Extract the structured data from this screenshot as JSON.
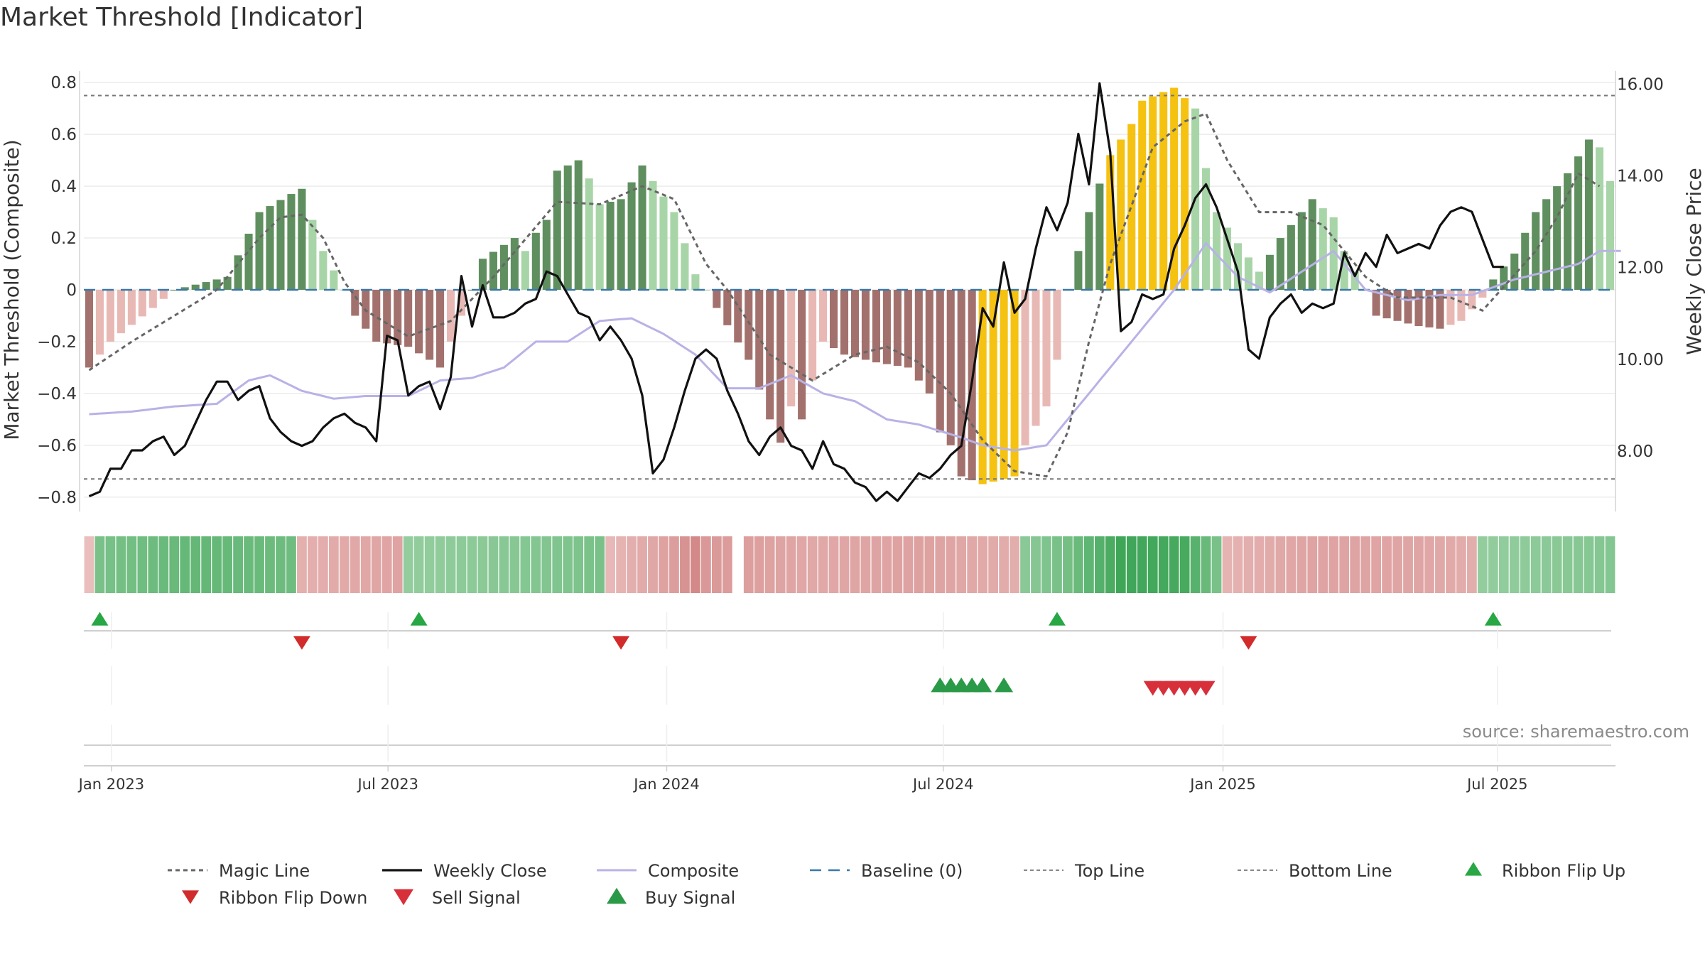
{
  "title": "Market Threshold [Indicator]",
  "source_note": "source: sharemaestro.com",
  "colors": {
    "bull_dark": "#5f8f5f",
    "bull_light": "#a8d5a8",
    "bear_dark": "#a3716d",
    "bear_light": "#e8b9b4",
    "extreme": "#f5c211",
    "close": "#111111",
    "composite": "#b8b2e6",
    "magic": "#666666",
    "baseline": "#3a78a8",
    "buy": "#2b9a48",
    "sell": "#d7303b",
    "flip_up": "#28a745",
    "flip_down": "#d22b2b"
  },
  "chart_data": {
    "type": "composite-indicator",
    "title": "Market Threshold [Indicator]",
    "ylabel_left": "Market Threshold (Composite)",
    "ylabel_right": "Weekly Close Price",
    "ylim_left": [
      -0.85,
      0.85
    ],
    "ylim_right": [
      6.7,
      16.3
    ],
    "yticks_left": [
      {
        "v": 0.8,
        "label": "0.8"
      },
      {
        "v": 0.6,
        "label": "0.6"
      },
      {
        "v": 0.4,
        "label": "0.4"
      },
      {
        "v": 0.2,
        "label": "0.2"
      },
      {
        "v": 0,
        "label": "0"
      },
      {
        "v": -0.2,
        "label": "−0.2"
      },
      {
        "v": -0.4,
        "label": "−0.4"
      },
      {
        "v": -0.6,
        "label": "−0.6"
      },
      {
        "v": -0.8,
        "label": "−0.8"
      }
    ],
    "yticks_right": [
      {
        "v": 16,
        "label": "16.00"
      },
      {
        "v": 14,
        "label": "14.00"
      },
      {
        "v": 12,
        "label": "12.00"
      },
      {
        "v": 10,
        "label": "10.00"
      },
      {
        "v": 8,
        "label": "8.00"
      }
    ],
    "x_start": "2022-12-19",
    "weeks": 144,
    "xticks": [
      {
        "week": 2.1,
        "label": "Jan 2023"
      },
      {
        "week": 28.1,
        "label": "Jul 2023"
      },
      {
        "week": 54.3,
        "label": "Jan 2024"
      },
      {
        "week": 80.3,
        "label": "Jul 2024"
      },
      {
        "week": 106.6,
        "label": "Jan 2025"
      },
      {
        "week": 132.4,
        "label": "Jul 2025"
      }
    ],
    "top_line": 0.75,
    "bottom_line": -0.73,
    "baseline": 0,
    "histogram_anchors": [
      [
        0,
        -0.3
      ],
      [
        2,
        -0.2
      ],
      [
        6,
        -0.07
      ],
      [
        8,
        0
      ],
      [
        10,
        0.02
      ],
      [
        13,
        0.05
      ],
      [
        16,
        0.3
      ],
      [
        19,
        0.37
      ],
      [
        20,
        0.39
      ],
      [
        22,
        0.15
      ],
      [
        24,
        0
      ],
      [
        25,
        -0.1
      ],
      [
        27,
        -0.2
      ],
      [
        30,
        -0.22
      ],
      [
        32,
        -0.27
      ],
      [
        33,
        -0.3
      ],
      [
        35,
        -0.1
      ],
      [
        36,
        0
      ],
      [
        37,
        0.12
      ],
      [
        40,
        0.2
      ],
      [
        41,
        0.15
      ],
      [
        42,
        0.22
      ],
      [
        43,
        0.27
      ],
      [
        44,
        0.46
      ],
      [
        46,
        0.5
      ],
      [
        47,
        0.43
      ],
      [
        48,
        0.33
      ],
      [
        50,
        0.35
      ],
      [
        52,
        0.48
      ],
      [
        55,
        0.3
      ],
      [
        57,
        0.06
      ],
      [
        58,
        0
      ],
      [
        59,
        -0.07
      ],
      [
        62,
        -0.27
      ],
      [
        64,
        -0.5
      ],
      [
        65,
        -0.59
      ],
      [
        66,
        -0.45
      ],
      [
        67,
        -0.5
      ],
      [
        69,
        -0.2
      ],
      [
        71,
        -0.25
      ],
      [
        74,
        -0.28
      ],
      [
        77,
        -0.3
      ],
      [
        79,
        -0.4
      ],
      [
        80,
        -0.55
      ],
      [
        81,
        -0.6
      ],
      [
        82,
        -0.72
      ],
      [
        84,
        -0.75
      ],
      [
        86,
        -0.73
      ],
      [
        87,
        -0.72
      ],
      [
        88,
        -0.6
      ],
      [
        90,
        -0.45
      ],
      [
        91,
        -0.27
      ],
      [
        92,
        0
      ],
      [
        93,
        0.15
      ],
      [
        94,
        0.3
      ],
      [
        96,
        0.52
      ],
      [
        98,
        0.64
      ],
      [
        99,
        0.73
      ],
      [
        102,
        0.78
      ],
      [
        104,
        0.7
      ],
      [
        105,
        0.47
      ],
      [
        106,
        0.3
      ],
      [
        108,
        0.18
      ],
      [
        110,
        0.07
      ],
      [
        112,
        0.2
      ],
      [
        114,
        0.3
      ],
      [
        115,
        0.35
      ],
      [
        117,
        0.28
      ],
      [
        118,
        0.15
      ],
      [
        119,
        0.07
      ],
      [
        120,
        0
      ],
      [
        121,
        -0.1
      ],
      [
        123,
        -0.12
      ],
      [
        125,
        -0.14
      ],
      [
        127,
        -0.15
      ],
      [
        129,
        -0.12
      ],
      [
        131,
        -0.03
      ],
      [
        132,
        0.04
      ],
      [
        134,
        0.14
      ],
      [
        136,
        0.3
      ],
      [
        139,
        0.45
      ],
      [
        141,
        0.58
      ],
      [
        142,
        0.55
      ],
      [
        143,
        0.42
      ],
      [
        144,
        0.33
      ]
    ],
    "histogram_extreme_weeks": [
      [
        84,
        87
      ],
      [
        96,
        103
      ]
    ],
    "magic_line_anchors": [
      [
        0,
        -0.31
      ],
      [
        4,
        -0.2
      ],
      [
        8,
        -0.1
      ],
      [
        12,
        0.0
      ],
      [
        16,
        0.2
      ],
      [
        18,
        0.28
      ],
      [
        20,
        0.29
      ],
      [
        22,
        0.2
      ],
      [
        24,
        0.03
      ],
      [
        26,
        -0.08
      ],
      [
        30,
        -0.18
      ],
      [
        34,
        -0.12
      ],
      [
        38,
        0.05
      ],
      [
        44,
        0.34
      ],
      [
        48,
        0.33
      ],
      [
        52,
        0.4
      ],
      [
        55,
        0.35
      ],
      [
        58,
        0.1
      ],
      [
        60,
        0.0
      ],
      [
        64,
        -0.25
      ],
      [
        68,
        -0.35
      ],
      [
        72,
        -0.25
      ],
      [
        75,
        -0.22
      ],
      [
        78,
        -0.28
      ],
      [
        81,
        -0.4
      ],
      [
        84,
        -0.58
      ],
      [
        87,
        -0.7
      ],
      [
        90,
        -0.72
      ],
      [
        92,
        -0.55
      ],
      [
        94,
        -0.2
      ],
      [
        96,
        0.1
      ],
      [
        100,
        0.55
      ],
      [
        103,
        0.65
      ],
      [
        105,
        0.68
      ],
      [
        107,
        0.5
      ],
      [
        110,
        0.3
      ],
      [
        113,
        0.3
      ],
      [
        116,
        0.25
      ],
      [
        120,
        0.05
      ],
      [
        123,
        -0.03
      ],
      [
        128,
        -0.03
      ],
      [
        131,
        -0.08
      ],
      [
        136,
        0.15
      ],
      [
        138,
        0.28
      ],
      [
        140,
        0.45
      ],
      [
        142,
        0.4
      ]
    ],
    "composite_anchors": [
      [
        0,
        -0.48
      ],
      [
        4,
        -0.47
      ],
      [
        8,
        -0.45
      ],
      [
        12,
        -0.44
      ],
      [
        15,
        -0.35
      ],
      [
        17,
        -0.33
      ],
      [
        20,
        -0.39
      ],
      [
        23,
        -0.42
      ],
      [
        26,
        -0.41
      ],
      [
        30,
        -0.41
      ],
      [
        33,
        -0.35
      ],
      [
        36,
        -0.34
      ],
      [
        39,
        -0.3
      ],
      [
        42,
        -0.2
      ],
      [
        45,
        -0.2
      ],
      [
        48,
        -0.12
      ],
      [
        51,
        -0.11
      ],
      [
        54,
        -0.17
      ],
      [
        57,
        -0.25
      ],
      [
        60,
        -0.38
      ],
      [
        63,
        -0.38
      ],
      [
        66,
        -0.33
      ],
      [
        69,
        -0.4
      ],
      [
        72,
        -0.43
      ],
      [
        75,
        -0.5
      ],
      [
        78,
        -0.52
      ],
      [
        82,
        -0.57
      ],
      [
        84,
        -0.6
      ],
      [
        87,
        -0.62
      ],
      [
        90,
        -0.6
      ],
      [
        93,
        -0.45
      ],
      [
        96,
        -0.3
      ],
      [
        99,
        -0.15
      ],
      [
        102,
        0
      ],
      [
        105,
        0.18
      ],
      [
        108,
        0.05
      ],
      [
        111,
        -0.01
      ],
      [
        114,
        0.07
      ],
      [
        117,
        0.15
      ],
      [
        120,
        0.0
      ],
      [
        124,
        -0.04
      ],
      [
        127,
        -0.02
      ],
      [
        130,
        -0.02
      ],
      [
        134,
        0.04
      ],
      [
        137,
        0.07
      ],
      [
        140,
        0.1
      ],
      [
        142,
        0.15
      ],
      [
        144,
        0.15
      ]
    ],
    "close_anchors": [
      [
        0,
        7.0
      ],
      [
        1,
        7.1
      ],
      [
        2,
        7.6
      ],
      [
        3,
        7.6
      ],
      [
        4,
        8.0
      ],
      [
        5,
        8.0
      ],
      [
        6,
        8.2
      ],
      [
        7,
        8.3
      ],
      [
        8,
        7.9
      ],
      [
        9,
        8.1
      ],
      [
        10,
        8.6
      ],
      [
        11,
        9.1
      ],
      [
        12,
        9.5
      ],
      [
        13,
        9.5
      ],
      [
        14,
        9.1
      ],
      [
        15,
        9.3
      ],
      [
        16,
        9.4
      ],
      [
        17,
        8.7
      ],
      [
        18,
        8.4
      ],
      [
        19,
        8.2
      ],
      [
        20,
        8.1
      ],
      [
        21,
        8.2
      ],
      [
        22,
        8.5
      ],
      [
        23,
        8.7
      ],
      [
        24,
        8.8
      ],
      [
        25,
        8.6
      ],
      [
        26,
        8.5
      ],
      [
        27,
        8.2
      ],
      [
        28,
        10.5
      ],
      [
        29,
        10.4
      ],
      [
        30,
        9.2
      ],
      [
        31,
        9.4
      ],
      [
        32,
        9.5
      ],
      [
        33,
        8.9
      ],
      [
        34,
        9.6
      ],
      [
        35,
        11.8
      ],
      [
        36,
        10.7
      ],
      [
        37,
        11.6
      ],
      [
        38,
        10.9
      ],
      [
        39,
        10.9
      ],
      [
        40,
        11.0
      ],
      [
        41,
        11.2
      ],
      [
        42,
        11.3
      ],
      [
        43,
        11.9
      ],
      [
        44,
        11.8
      ],
      [
        45,
        11.4
      ],
      [
        46,
        11.0
      ],
      [
        47,
        10.9
      ],
      [
        48,
        10.4
      ],
      [
        49,
        10.7
      ],
      [
        50,
        10.4
      ],
      [
        51,
        10.0
      ],
      [
        52,
        9.2
      ],
      [
        53,
        7.5
      ],
      [
        54,
        7.8
      ],
      [
        55,
        8.5
      ],
      [
        56,
        9.3
      ],
      [
        57,
        10.0
      ],
      [
        58,
        10.2
      ],
      [
        59,
        10.0
      ],
      [
        60,
        9.3
      ],
      [
        61,
        8.8
      ],
      [
        62,
        8.2
      ],
      [
        63,
        7.9
      ],
      [
        64,
        8.3
      ],
      [
        65,
        8.5
      ],
      [
        66,
        8.1
      ],
      [
        67,
        8.0
      ],
      [
        68,
        7.6
      ],
      [
        69,
        8.2
      ],
      [
        70,
        7.7
      ],
      [
        71,
        7.6
      ],
      [
        72,
        7.3
      ],
      [
        73,
        7.2
      ],
      [
        74,
        6.9
      ],
      [
        75,
        7.1
      ],
      [
        76,
        6.9
      ],
      [
        77,
        7.2
      ],
      [
        78,
        7.5
      ],
      [
        79,
        7.4
      ],
      [
        80,
        7.6
      ],
      [
        81,
        7.9
      ],
      [
        82,
        8.1
      ],
      [
        83,
        9.5
      ],
      [
        84,
        11.1
      ],
      [
        85,
        10.7
      ],
      [
        86,
        12.1
      ],
      [
        87,
        11.0
      ],
      [
        88,
        11.3
      ],
      [
        89,
        12.4
      ],
      [
        90,
        13.3
      ],
      [
        91,
        12.8
      ],
      [
        92,
        13.4
      ],
      [
        93,
        14.9
      ],
      [
        94,
        13.8
      ],
      [
        95,
        16.0
      ],
      [
        96,
        14.5
      ],
      [
        97,
        10.6
      ],
      [
        98,
        10.8
      ],
      [
        99,
        11.4
      ],
      [
        100,
        11.3
      ],
      [
        101,
        11.4
      ],
      [
        102,
        12.4
      ],
      [
        103,
        12.9
      ],
      [
        104,
        13.5
      ],
      [
        105,
        13.8
      ],
      [
        106,
        13.3
      ],
      [
        107,
        12.6
      ],
      [
        108,
        11.9
      ],
      [
        109,
        10.2
      ],
      [
        110,
        10.0
      ],
      [
        111,
        10.9
      ],
      [
        112,
        11.2
      ],
      [
        113,
        11.4
      ],
      [
        114,
        11.0
      ],
      [
        115,
        11.2
      ],
      [
        116,
        11.1
      ],
      [
        117,
        11.2
      ],
      [
        118,
        12.3
      ],
      [
        119,
        11.8
      ],
      [
        120,
        12.3
      ],
      [
        121,
        12.0
      ],
      [
        122,
        12.7
      ],
      [
        123,
        12.3
      ],
      [
        124,
        12.4
      ],
      [
        125,
        12.5
      ],
      [
        126,
        12.4
      ],
      [
        127,
        12.9
      ],
      [
        128,
        13.2
      ],
      [
        129,
        13.3
      ],
      [
        130,
        13.2
      ],
      [
        131,
        12.6
      ],
      [
        132,
        12.0
      ],
      [
        133,
        12.0
      ]
    ],
    "ribbon_anchors": [
      [
        0,
        -0.25
      ],
      [
        1,
        0.55
      ],
      [
        10,
        0.68
      ],
      [
        19,
        0.62
      ],
      [
        20,
        -0.38
      ],
      [
        29,
        -0.5
      ],
      [
        30,
        0.4
      ],
      [
        40,
        0.47
      ],
      [
        48,
        0.55
      ],
      [
        49,
        -0.3
      ],
      [
        55,
        -0.55
      ],
      [
        57,
        -0.75
      ],
      [
        58,
        -0.6
      ],
      [
        68,
        -0.45
      ],
      [
        78,
        -0.52
      ],
      [
        87,
        -0.4
      ],
      [
        88,
        0.45
      ],
      [
        92,
        0.58
      ],
      [
        97,
        0.9
      ],
      [
        103,
        0.85
      ],
      [
        106,
        0.55
      ],
      [
        107,
        -0.35
      ],
      [
        115,
        -0.5
      ],
      [
        125,
        -0.48
      ],
      [
        130,
        -0.4
      ],
      [
        131,
        0.4
      ],
      [
        144,
        0.5
      ]
    ],
    "ribbon_gap_week": 61,
    "ribbon_flip_up_weeks": [
      1,
      31,
      91,
      132
    ],
    "ribbon_flip_down_weeks": [
      20,
      50,
      109
    ],
    "buy_signal_weeks": [
      80,
      81,
      82,
      83,
      84,
      86
    ],
    "sell_signal_weeks": [
      100,
      101,
      102,
      103,
      104,
      105
    ]
  },
  "legend": [
    {
      "label": "Magic Line",
      "key": "magic"
    },
    {
      "label": "Weekly Close",
      "key": "close"
    },
    {
      "label": "Composite",
      "key": "composite"
    },
    {
      "label": "Baseline (0)",
      "key": "baseline"
    },
    {
      "label": "Top Line",
      "key": "top"
    },
    {
      "label": "Bottom Line",
      "key": "bottom"
    },
    {
      "label": "Ribbon Flip Up",
      "key": "flipup"
    },
    {
      "label": "Ribbon Flip Down",
      "key": "flipdown"
    },
    {
      "label": "Sell Signal",
      "key": "sell"
    },
    {
      "label": "Buy Signal",
      "key": "buy"
    }
  ]
}
